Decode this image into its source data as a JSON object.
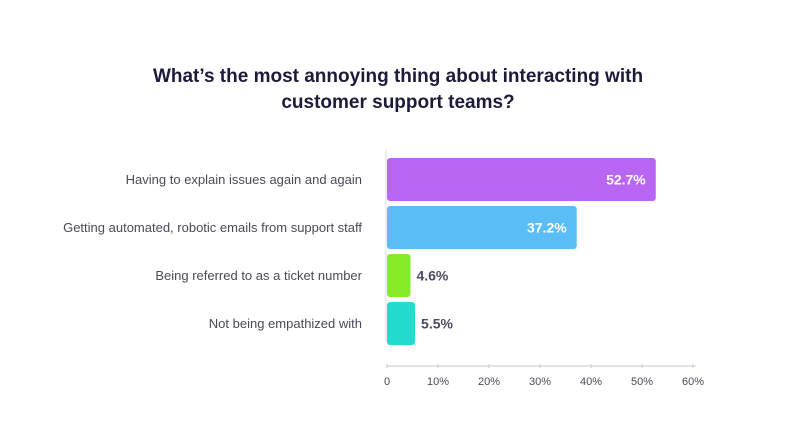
{
  "chart_data": {
    "type": "bar",
    "orientation": "horizontal",
    "title_lines": [
      "What’s the most annoying thing about interacting with",
      "customer support teams?"
    ],
    "categories": [
      "Having to explain issues again and again",
      "Getting automated, robotic emails from support staff",
      "Being referred to as a ticket number",
      "Not being empathized with"
    ],
    "values": [
      52.7,
      37.2,
      4.6,
      5.5
    ],
    "value_labels": [
      "52.7%",
      "37.2%",
      "4.6%",
      "5.5%"
    ],
    "colors": [
      "#b966f5",
      "#5bbdf5",
      "#86ec28",
      "#22dccd"
    ],
    "label_colors_inside": "#ffffff",
    "label_color_outside": "#4a4a62",
    "xlim": [
      0,
      60
    ],
    "xticks": [
      0,
      10,
      20,
      30,
      40,
      50,
      60
    ],
    "xtick_labels": [
      "0",
      "10%",
      "20%",
      "30%",
      "40%",
      "50%",
      "60%"
    ],
    "grid": false,
    "legend": "none"
  }
}
